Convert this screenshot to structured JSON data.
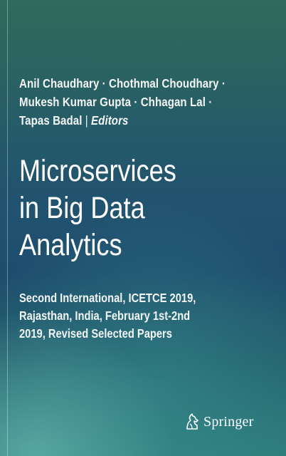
{
  "authors": {
    "line1": "Anil Chaudhary · Chothmal Choudhary ·",
    "line2": "Mukesh Kumar Gupta · Chhagan Lal ·",
    "line3_name": "Tapas Badal",
    "line3_role": "Editors"
  },
  "title": {
    "line1": "Microservices",
    "line2": "in Big Data",
    "line3": "Analytics"
  },
  "subtitle": {
    "line1": "Second International, ICETCE 2019,",
    "line2": "Rajasthan, India, February 1st-2nd",
    "line3": "2019, Revised Selected Papers"
  },
  "publisher": {
    "name": "Springer",
    "icon": "springer-horse-icon"
  },
  "colors": {
    "background_top": "#2f6a5c",
    "background_mid": "#1e4d6d",
    "background_bottom": "#2e7d7c",
    "text": "#ffffff"
  }
}
